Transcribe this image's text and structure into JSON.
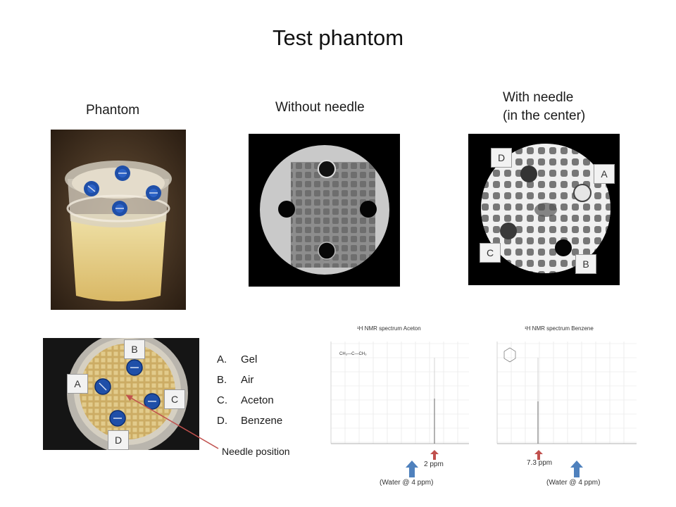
{
  "slide": {
    "title": "Test phantom",
    "captions": {
      "phantom": "Phantom",
      "without_needle": "Without needle",
      "with_needle_line1": "With needle",
      "with_needle_line2": "(in the center)"
    },
    "mri_markers": [
      "D",
      "A",
      "C",
      "B"
    ],
    "topview_markers": [
      "B",
      "A",
      "C",
      "D"
    ],
    "legend": [
      {
        "letter": "A.",
        "text": "Gel"
      },
      {
        "letter": "B.",
        "text": "Air"
      },
      {
        "letter": "C.",
        "text": "Aceton"
      },
      {
        "letter": "D.",
        "text": "Benzene"
      }
    ],
    "needle_position_label": "Needle position",
    "nmr": [
      {
        "title": "¹H NMR spectrum Aceton",
        "formula": "CH₃—C—CH₃",
        "peak_label": "2 ppm",
        "water_label": "(Water @  4 ppm)"
      },
      {
        "title": "¹H NMR spectrum Benzene",
        "peak_label": "7.3 ppm",
        "water_label": "(Water @  4 ppm)"
      }
    ],
    "colors": {
      "arrow_red": "#c0504d",
      "arrow_blue": "#4f81bd",
      "cap_blue": "#1f4fa8"
    }
  }
}
